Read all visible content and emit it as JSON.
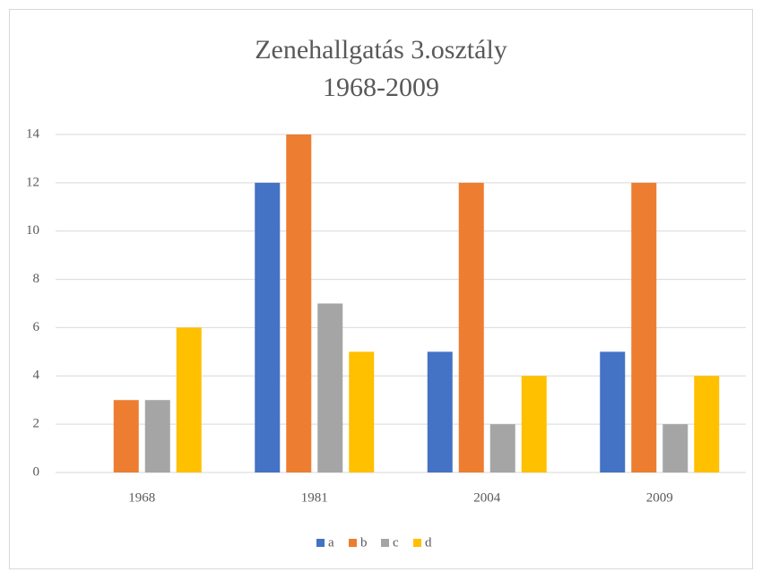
{
  "chart_data": {
    "type": "bar",
    "title": "Zenehallgatás  3.osztály",
    "subtitle": "1968-2009",
    "categories": [
      "1968",
      "1981",
      "2004",
      "2009"
    ],
    "series": [
      {
        "name": "a",
        "color": "#4472c4",
        "values": [
          0,
          12,
          5,
          5
        ]
      },
      {
        "name": "b",
        "color": "#ed7d31",
        "values": [
          3,
          14,
          12,
          12
        ]
      },
      {
        "name": "c",
        "color": "#a5a5a5",
        "values": [
          3,
          7,
          2,
          2
        ]
      },
      {
        "name": "d",
        "color": "#ffc000",
        "values": [
          6,
          5,
          4,
          4
        ]
      }
    ],
    "ylim": [
      0,
      14
    ],
    "yticks": [
      0,
      2,
      4,
      6,
      8,
      10,
      12,
      14
    ],
    "grid": true,
    "legend": "bottom"
  }
}
